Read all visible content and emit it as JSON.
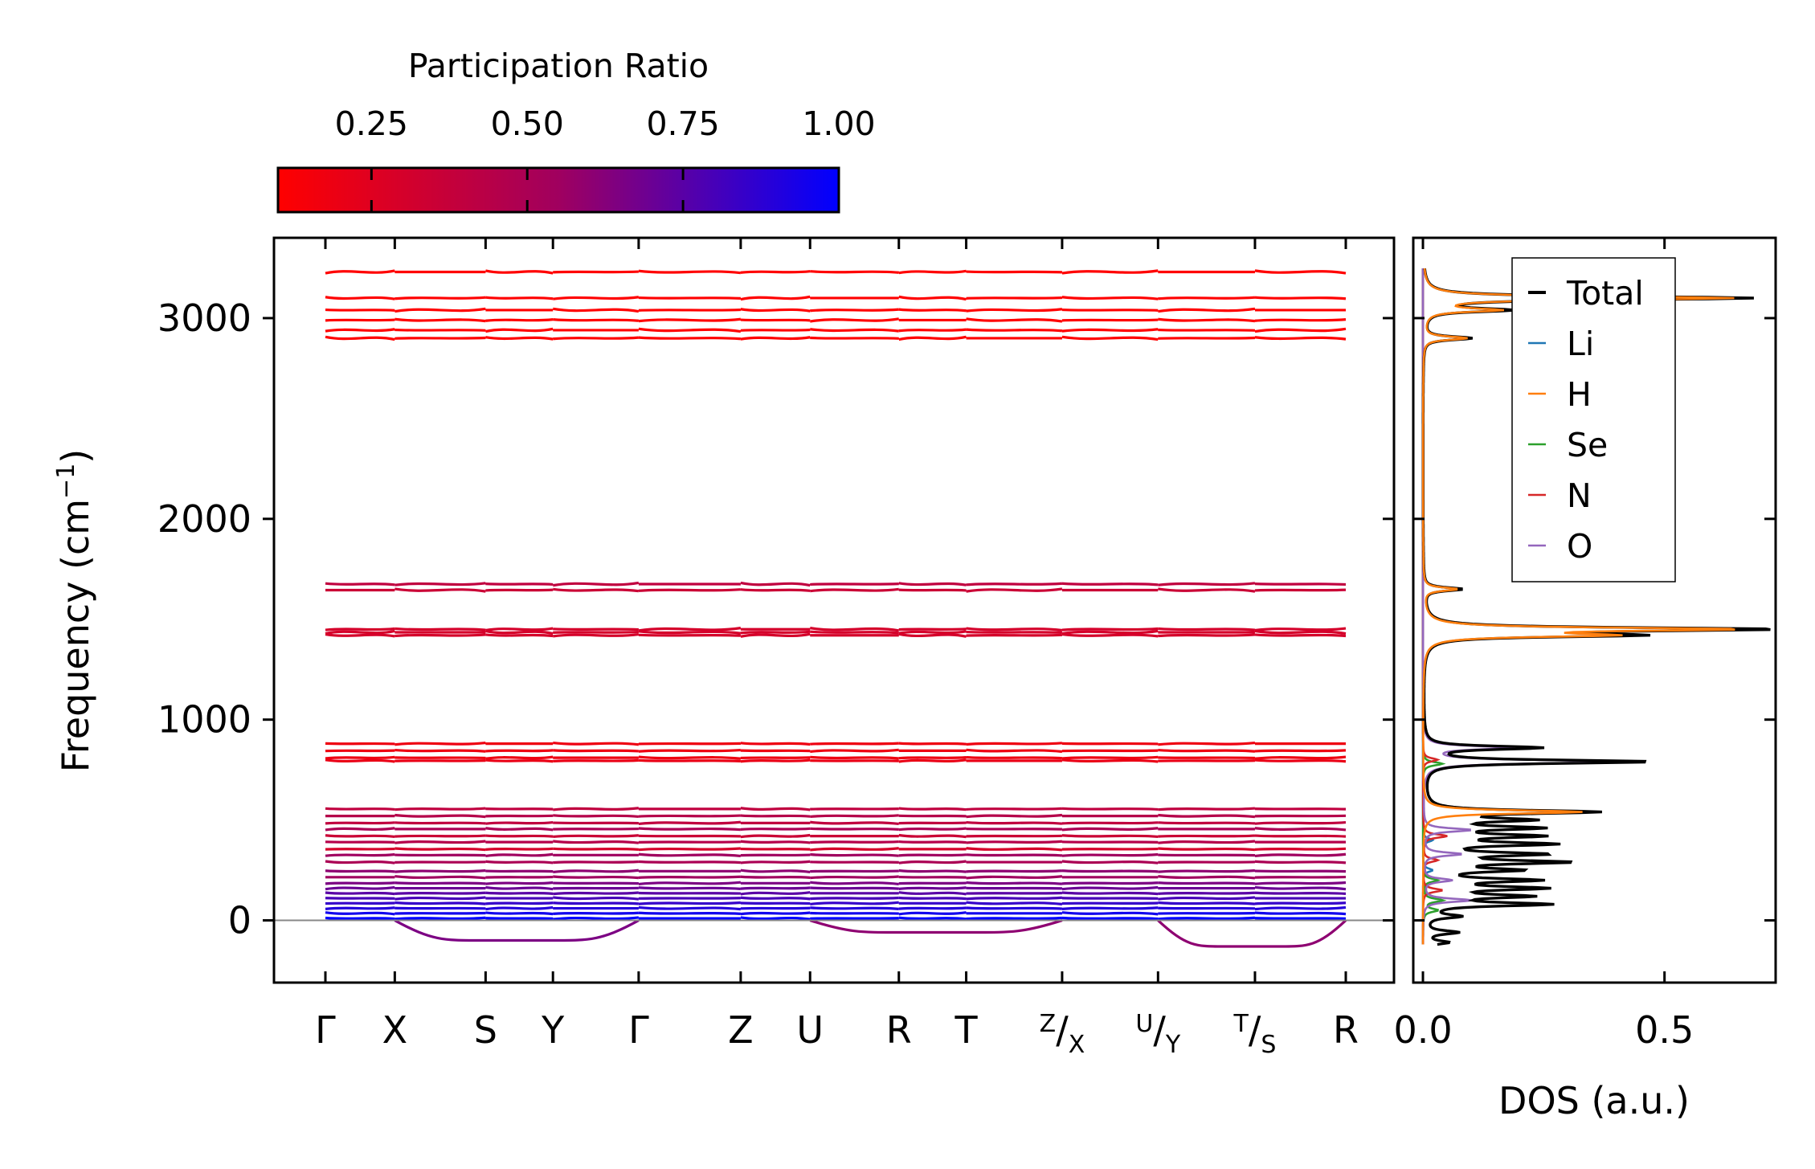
{
  "chart_data": [
    {
      "type": "line",
      "name": "phonon-band-structure",
      "ylabel": "Frequency (cm",
      "ylabel_sup": "−1",
      "ylabel_close": ")",
      "ylim": [
        -310,
        3400
      ],
      "yticks": [
        0,
        1000,
        2000,
        3000
      ],
      "ytick_labels": [
        "0",
        "1000",
        "2000",
        "3000"
      ],
      "kpath_labels": [
        {
          "main": "Γ"
        },
        {
          "main": "X"
        },
        {
          "main": "S"
        },
        {
          "main": "Y"
        },
        {
          "main": "Γ"
        },
        {
          "main": "Z"
        },
        {
          "main": "U"
        },
        {
          "main": "R"
        },
        {
          "main": "T"
        },
        {
          "sup": "Z",
          "slash": "/",
          "sub": "X"
        },
        {
          "sup": "U",
          "slash": "/",
          "sub": "Y"
        },
        {
          "sup": "T",
          "slash": "/",
          "sub": "S"
        },
        {
          "main": "R"
        }
      ],
      "kpath_positions": [
        0,
        0.068,
        0.157,
        0.223,
        0.307,
        0.407,
        0.475,
        0.562,
        0.628,
        0.722,
        0.816,
        0.911,
        1.0
      ],
      "zero_line": true,
      "colorbar": {
        "title": "Participation Ratio",
        "range": [
          0.1,
          1.0
        ],
        "ticks": [
          0.25,
          0.5,
          0.75,
          1.0
        ],
        "tick_labels": [
          "0.25",
          "0.50",
          "0.75",
          "1.00"
        ],
        "color_low": "#ff0000",
        "color_mid": "#a0005f",
        "color_high": "#0000ff"
      },
      "bands": [
        {
          "freq": 3230,
          "pr": 0.1
        },
        {
          "freq": 3100,
          "pr": 0.1
        },
        {
          "freq": 3040,
          "pr": 0.1
        },
        {
          "freq": 2990,
          "pr": 0.1
        },
        {
          "freq": 2940,
          "pr": 0.1
        },
        {
          "freq": 2900,
          "pr": 0.1
        },
        {
          "freq": 1675,
          "pr": 0.4
        },
        {
          "freq": 1645,
          "pr": 0.35
        },
        {
          "freq": 1450,
          "pr": 0.3
        },
        {
          "freq": 1435,
          "pr": 0.3
        },
        {
          "freq": 1420,
          "pr": 0.3
        },
        {
          "freq": 880,
          "pr": 0.18
        },
        {
          "freq": 845,
          "pr": 0.18
        },
        {
          "freq": 810,
          "pr": 0.18
        },
        {
          "freq": 795,
          "pr": 0.2
        },
        {
          "freq": 555,
          "pr": 0.4
        },
        {
          "freq": 520,
          "pr": 0.45
        },
        {
          "freq": 485,
          "pr": 0.4
        },
        {
          "freq": 455,
          "pr": 0.5
        },
        {
          "freq": 420,
          "pr": 0.35
        },
        {
          "freq": 390,
          "pr": 0.45
        },
        {
          "freq": 355,
          "pr": 0.3
        },
        {
          "freq": 325,
          "pr": 0.55
        },
        {
          "freq": 290,
          "pr": 0.5
        },
        {
          "freq": 245,
          "pr": 0.6
        },
        {
          "freq": 215,
          "pr": 0.55
        },
        {
          "freq": 185,
          "pr": 0.65
        },
        {
          "freq": 160,
          "pr": 0.7
        },
        {
          "freq": 135,
          "pr": 0.75
        },
        {
          "freq": 110,
          "pr": 0.8
        },
        {
          "freq": 85,
          "pr": 0.85
        },
        {
          "freq": 60,
          "pr": 0.9
        },
        {
          "freq": 35,
          "pr": 0.95
        },
        {
          "freq": 10,
          "pr": 1.0
        }
      ],
      "imaginary_branches": [
        {
          "from": 0.068,
          "to": 0.307,
          "min": -100,
          "pr": 0.65
        },
        {
          "from": 0.475,
          "to": 0.722,
          "min": -60,
          "pr": 0.6
        },
        {
          "from": 0.816,
          "to": 1.0,
          "min": -130,
          "pr": 0.6
        }
      ]
    },
    {
      "type": "line",
      "name": "density-of-states",
      "xlabel": "DOS (a.u.)",
      "xlim": [
        -0.02,
        0.73
      ],
      "xticks": [
        0.0,
        0.5
      ],
      "xtick_labels": [
        "0.0",
        "0.5"
      ],
      "legend": [
        "Total",
        "Li",
        "H",
        "Se",
        "N",
        "O"
      ],
      "legend_position": "top-right",
      "colors": {
        "Total": "#000000",
        "Li": "#1f77b4",
        "H": "#ff7f0e",
        "Se": "#2ca02c",
        "N": "#d62728",
        "O": "#9467bd"
      },
      "peaks": {
        "Total": [
          [
            -110,
            0.05
          ],
          [
            -60,
            0.07
          ],
          [
            20,
            0.07
          ],
          [
            80,
            0.25
          ],
          [
            120,
            0.2
          ],
          [
            160,
            0.23
          ],
          [
            200,
            0.22
          ],
          [
            250,
            0.18
          ],
          [
            290,
            0.28
          ],
          [
            330,
            0.23
          ],
          [
            380,
            0.25
          ],
          [
            420,
            0.22
          ],
          [
            460,
            0.22
          ],
          [
            500,
            0.2
          ],
          [
            540,
            0.35
          ],
          [
            790,
            0.47
          ],
          [
            860,
            0.24
          ],
          [
            1420,
            0.4
          ],
          [
            1450,
            0.7
          ],
          [
            1650,
            0.08
          ],
          [
            2900,
            0.1
          ],
          [
            3040,
            0.17
          ],
          [
            3100,
            0.68
          ]
        ],
        "H": [
          [
            540,
            0.33
          ],
          [
            1420,
            0.35
          ],
          [
            1450,
            0.63
          ],
          [
            1650,
            0.07
          ],
          [
            2900,
            0.09
          ],
          [
            3040,
            0.15
          ],
          [
            3100,
            0.64
          ]
        ],
        "O": [
          [
            100,
            0.1
          ],
          [
            200,
            0.06
          ],
          [
            330,
            0.08
          ],
          [
            450,
            0.1
          ],
          [
            790,
            0.41
          ],
          [
            860,
            0.18
          ]
        ],
        "N": [
          [
            150,
            0.04
          ],
          [
            300,
            0.03
          ],
          [
            420,
            0.05
          ],
          [
            800,
            0.03
          ]
        ],
        "Se": [
          [
            50,
            0.03
          ],
          [
            100,
            0.04
          ],
          [
            200,
            0.03
          ],
          [
            780,
            0.04
          ]
        ],
        "Li": [
          [
            250,
            0.02
          ],
          [
            400,
            0.02
          ]
        ]
      }
    }
  ]
}
